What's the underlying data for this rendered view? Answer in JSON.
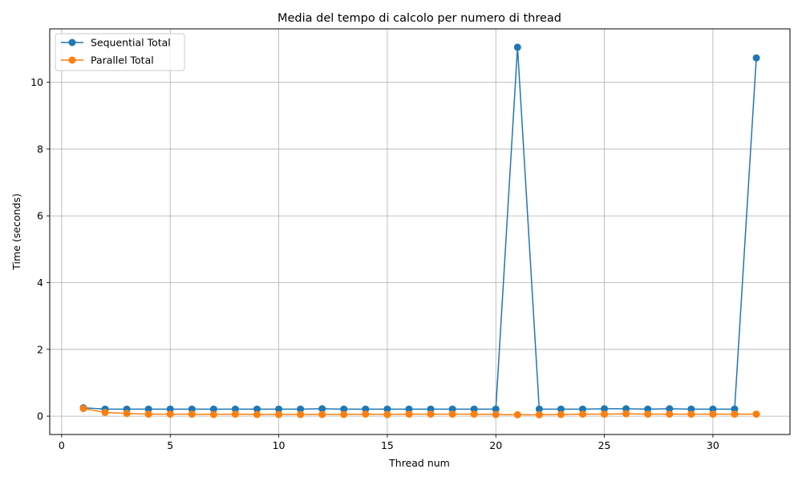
{
  "chart_data": {
    "type": "line",
    "title": "Media del tempo di calcolo per numero di thread",
    "xlabel": "Thread num",
    "ylabel": "Time (seconds)",
    "xlim": [
      -0.55,
      33.55
    ],
    "ylim": [
      -0.55,
      11.6
    ],
    "xticks": [
      0,
      5,
      10,
      15,
      20,
      25,
      30
    ],
    "yticks": [
      0,
      2,
      4,
      6,
      8,
      10
    ],
    "grid": true,
    "legend_position": "top-left",
    "x": [
      1,
      2,
      3,
      4,
      5,
      6,
      7,
      8,
      9,
      10,
      11,
      12,
      13,
      14,
      15,
      16,
      17,
      18,
      19,
      20,
      21,
      22,
      23,
      24,
      25,
      26,
      27,
      28,
      29,
      30,
      31,
      32
    ],
    "series": [
      {
        "name": "Sequential Total",
        "color": "#1f77b4",
        "values": [
          0.25,
          0.21,
          0.21,
          0.21,
          0.21,
          0.21,
          0.21,
          0.21,
          0.21,
          0.21,
          0.21,
          0.22,
          0.21,
          0.21,
          0.21,
          0.21,
          0.21,
          0.21,
          0.21,
          0.21,
          11.05,
          0.21,
          0.21,
          0.21,
          0.22,
          0.22,
          0.21,
          0.22,
          0.21,
          0.21,
          0.21,
          10.73
        ]
      },
      {
        "name": "Parallel Total",
        "color": "#ff7f0e",
        "values": [
          0.23,
          0.11,
          0.08,
          0.06,
          0.06,
          0.06,
          0.05,
          0.06,
          0.05,
          0.05,
          0.05,
          0.05,
          0.05,
          0.06,
          0.05,
          0.06,
          0.06,
          0.06,
          0.06,
          0.05,
          0.04,
          0.04,
          0.05,
          0.06,
          0.06,
          0.07,
          0.06,
          0.06,
          0.06,
          0.06,
          0.06,
          0.06
        ]
      }
    ]
  }
}
